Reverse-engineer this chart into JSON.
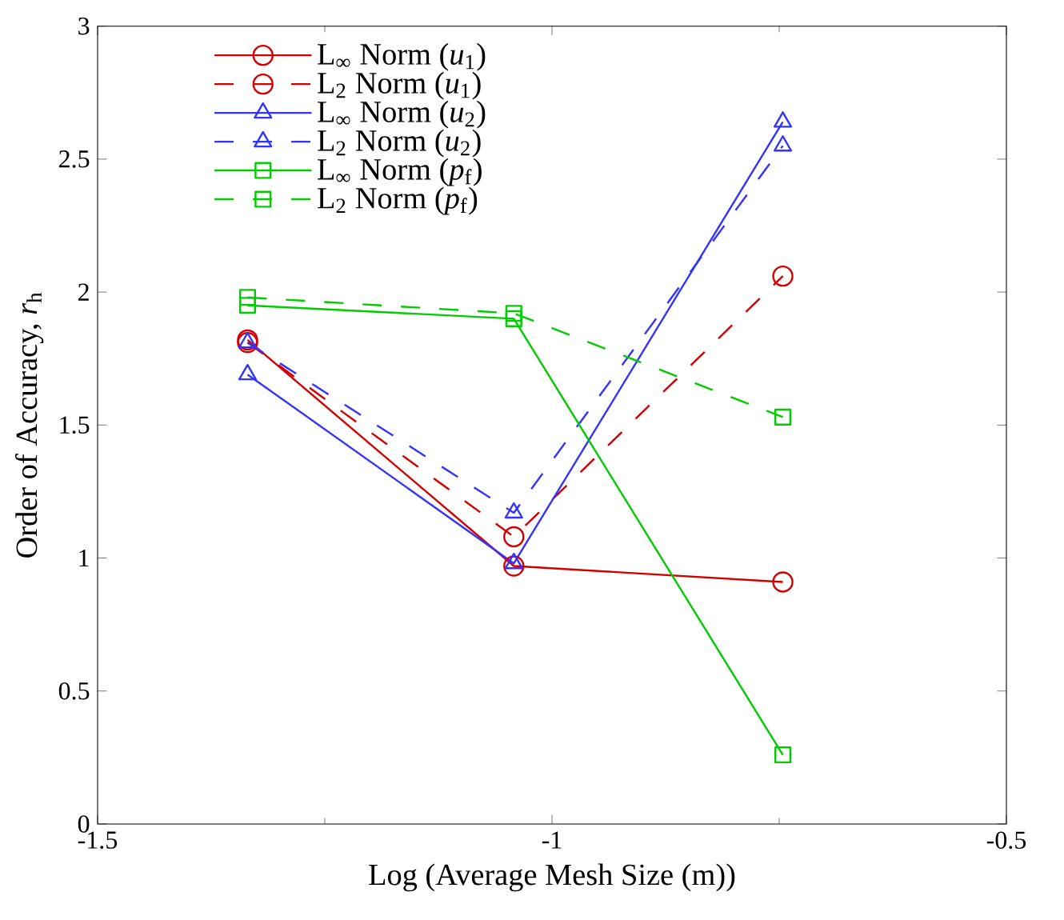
{
  "chart_data": {
    "type": "line",
    "xlabel": "Log (Average Mesh Size (m))",
    "ylabel": "Order of Accuracy, *r*$_{h}$",
    "x": [
      -1.335,
      -1.042,
      -0.746
    ],
    "xlim": [
      -1.5,
      -0.5
    ],
    "xticks": [
      -1.5,
      -1,
      -0.5
    ],
    "ylim": [
      0,
      3
    ],
    "yticks": [
      0,
      0.5,
      1,
      1.5,
      2,
      2.5,
      3
    ],
    "grid": false,
    "legend": "top left",
    "series": [
      {
        "name": "L$_{∞}$ Norm (*u*$_{1}$)",
        "color": "#d40000",
        "line_style": "solid",
        "marker": "circle",
        "values": [
          1.82,
          0.97,
          0.91
        ]
      },
      {
        "name": "L$_{2}$ Norm (*u*$_{1}$)",
        "color": "#d40000",
        "line_style": "dashed",
        "marker": "circle",
        "values": [
          1.81,
          1.08,
          2.06
        ]
      },
      {
        "name": "L$_{∞}$ Norm (*u*$_{2}$)",
        "color": "#3333ff",
        "line_style": "solid",
        "marker": "triangle",
        "values": [
          1.69,
          0.98,
          2.64
        ]
      },
      {
        "name": "L$_{2}$ Norm (*u*$_{2}$)",
        "color": "#3333ff",
        "line_style": "dashed",
        "marker": "triangle",
        "values": [
          1.81,
          1.17,
          2.55
        ]
      },
      {
        "name": "L$_{∞}$ Norm (*p*$_{f}$)",
        "color": "#00cc00",
        "line_style": "solid",
        "marker": "square",
        "values": [
          1.95,
          1.9,
          0.26
        ]
      },
      {
        "name": "L$_{2}$ Norm (*p*$_{f}$)",
        "color": "#00cc00",
        "line_style": "dashed",
        "marker": "square",
        "values": [
          1.98,
          1.92,
          1.53
        ]
      }
    ]
  }
}
